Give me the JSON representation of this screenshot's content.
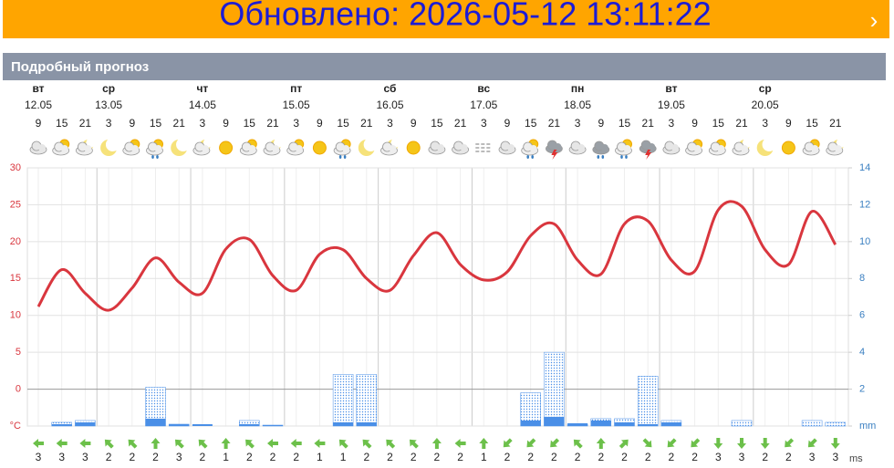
{
  "banner": {
    "text": "Обновлено: 2026-05-12 13:11:22",
    "arrow": "›"
  },
  "section_title": "Подробный прогноз",
  "chart_data": {
    "type": "forecast",
    "days": [
      {
        "weekday": "вт",
        "date": "12.05"
      },
      {
        "weekday": "ср",
        "date": "13.05"
      },
      {
        "weekday": "чт",
        "date": "14.05"
      },
      {
        "weekday": "пт",
        "date": "15.05"
      },
      {
        "weekday": "сб",
        "date": "16.05"
      },
      {
        "weekday": "вс",
        "date": "17.05"
      },
      {
        "weekday": "пн",
        "date": "18.05"
      },
      {
        "weekday": "вт",
        "date": "19.05"
      },
      {
        "weekday": "ср",
        "date": "20.05"
      }
    ],
    "hours": [
      9,
      15,
      21,
      3,
      9,
      15,
      21,
      3,
      9,
      15,
      21,
      3,
      9,
      15,
      21,
      3,
      9,
      15,
      21,
      3,
      9,
      15,
      21,
      3,
      9,
      15,
      21,
      3,
      9,
      15,
      21,
      3,
      9,
      15,
      21
    ],
    "temperature": {
      "color": "#d9363e",
      "values": [
        11.2,
        16.2,
        13,
        10.7,
        13.7,
        17.8,
        14.5,
        13,
        19,
        20.3,
        15.4,
        13.4,
        18.3,
        18.9,
        15,
        13.4,
        18.1,
        21.2,
        16.9,
        14.8,
        15.9,
        20.8,
        22.4,
        17.5,
        15.6,
        22.4,
        22.8,
        17.5,
        16,
        24.3,
        24.8,
        18.9,
        16.9,
        24.1,
        19.6
      ]
    },
    "precipitation": {
      "color": "#4a8fe7",
      "axis": "y2",
      "values": [
        0,
        0.1,
        0.2,
        0,
        0,
        0.4,
        0.1,
        0.1,
        0,
        0.1,
        0.05,
        0,
        0,
        0.2,
        0.2,
        0,
        0,
        0,
        0,
        0,
        0,
        0.3,
        0.5,
        0.15,
        0.3,
        0.2,
        0.1,
        0.2,
        0,
        0,
        0,
        0,
        0,
        0,
        0
      ]
    },
    "precipitation_max": {
      "color": "#4a8fe7",
      "axis": "y2",
      "values": [
        0,
        0.2,
        0.3,
        0,
        0,
        2.1,
        0.1,
        0,
        0,
        0.3,
        0.05,
        0,
        0,
        2.8,
        2.8,
        0,
        0,
        0,
        0,
        0,
        0,
        1.8,
        4,
        0.1,
        0.4,
        0.4,
        2.7,
        0.3,
        0,
        0,
        0.3,
        0,
        0,
        0.3,
        0.2
      ]
    },
    "ylim": [
      -5,
      30
    ],
    "yticks": [
      30,
      25,
      20,
      15,
      10,
      5,
      0,
      {
        "value": -5,
        "label": "°C"
      }
    ],
    "y2lim": [
      0,
      14
    ],
    "y2ticks": [
      14,
      12,
      10,
      8,
      6,
      4,
      2,
      {
        "value": 0,
        "label": "mm"
      }
    ],
    "wind": {
      "color": "#6cc04a",
      "unit": "ms",
      "speeds": [
        3,
        3,
        3,
        2,
        2,
        2,
        3,
        2,
        1,
        2,
        2,
        2,
        1,
        1,
        2,
        2,
        2,
        2,
        2,
        1,
        2,
        2,
        2,
        2,
        2,
        2,
        2,
        2,
        2,
        3,
        3,
        2,
        2,
        3,
        3
      ],
      "directions": [
        270,
        270,
        270,
        315,
        315,
        0,
        315,
        315,
        0,
        315,
        270,
        270,
        270,
        315,
        315,
        315,
        315,
        0,
        270,
        0,
        225,
        225,
        225,
        315,
        0,
        45,
        135,
        225,
        225,
        180,
        180,
        180,
        225,
        225,
        180
      ]
    }
  }
}
